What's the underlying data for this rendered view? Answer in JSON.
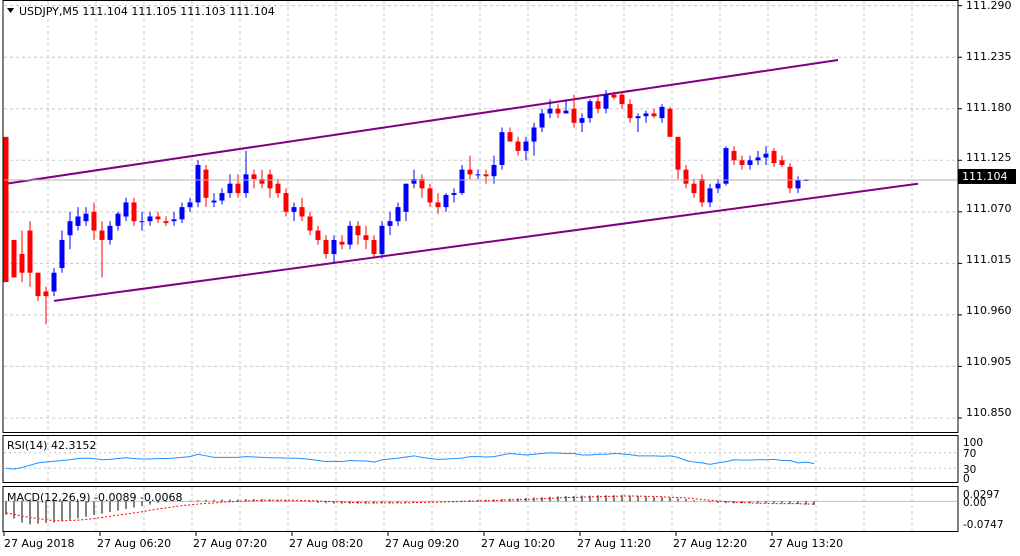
{
  "header": {
    "title": "USDJPY,M5  111.104 111.105 111.103 111.104"
  },
  "price_panel": {
    "price_label": "111.104",
    "y_ticks": [
      "111.290",
      "111.235",
      "111.180",
      "111.125",
      "111.070",
      "111.015",
      "110.960",
      "110.905",
      "110.850"
    ]
  },
  "rsi_panel": {
    "label": "RSI(14) 42.3152",
    "y_ticks": [
      "100",
      "70",
      "30",
      "0"
    ]
  },
  "macd_panel": {
    "label": "MACD(12,26,9) -0.0089 -0.0068",
    "y_ticks": [
      "0.0297",
      "0.00",
      "-0.0747"
    ]
  },
  "x_axis": {
    "ticks": [
      "27 Aug 2018",
      "27 Aug 06:20",
      "27 Aug 07:20",
      "27 Aug 08:20",
      "27 Aug 09:20",
      "27 Aug 10:20",
      "27 Aug 11:20",
      "27 Aug 12:20",
      "27 Aug 13:20"
    ]
  },
  "colors": {
    "bull": "#0000ff",
    "bear": "#ff0000",
    "channel": "#800080",
    "rsi": "#1e90ff",
    "macd_hist": "#000000",
    "macd_signal": "#ff0000",
    "grid": "#c8c8c8"
  },
  "chart_data": {
    "type": "candlestick",
    "symbol": "USDJPY",
    "timeframe": "M5",
    "ylim": [
      110.835,
      111.295
    ],
    "candles": [
      {
        "o": 111.15,
        "h": 111.15,
        "l": 110.995,
        "c": 110.995
      },
      {
        "o": 111.04,
        "h": 111.04,
        "l": 111.0,
        "c": 111.0
      },
      {
        "o": 111.025,
        "h": 111.05,
        "l": 110.995,
        "c": 111.005
      },
      {
        "o": 111.05,
        "h": 111.06,
        "l": 110.99,
        "c": 111.005
      },
      {
        "o": 111.005,
        "h": 111.005,
        "l": 110.975,
        "c": 110.98
      },
      {
        "o": 110.985,
        "h": 110.99,
        "l": 110.95,
        "c": 110.98
      },
      {
        "o": 110.985,
        "h": 111.01,
        "l": 110.98,
        "c": 111.005
      },
      {
        "o": 111.01,
        "h": 111.05,
        "l": 111.005,
        "c": 111.04
      },
      {
        "o": 111.045,
        "h": 111.07,
        "l": 111.03,
        "c": 111.06
      },
      {
        "o": 111.055,
        "h": 111.075,
        "l": 111.05,
        "c": 111.065
      },
      {
        "o": 111.06,
        "h": 111.075,
        "l": 111.055,
        "c": 111.068
      },
      {
        "o": 111.07,
        "h": 111.08,
        "l": 111.04,
        "c": 111.05
      },
      {
        "o": 111.05,
        "h": 111.06,
        "l": 111.0,
        "c": 111.04
      },
      {
        "o": 111.04,
        "h": 111.06,
        "l": 111.035,
        "c": 111.055
      },
      {
        "o": 111.055,
        "h": 111.07,
        "l": 111.05,
        "c": 111.068
      },
      {
        "o": 111.065,
        "h": 111.085,
        "l": 111.06,
        "c": 111.08
      },
      {
        "o": 111.08,
        "h": 111.085,
        "l": 111.055,
        "c": 111.06
      },
      {
        "o": 111.06,
        "h": 111.07,
        "l": 111.05,
        "c": 111.06
      },
      {
        "o": 111.06,
        "h": 111.07,
        "l": 111.055,
        "c": 111.065
      },
      {
        "o": 111.065,
        "h": 111.07,
        "l": 111.058,
        "c": 111.062
      },
      {
        "o": 111.06,
        "h": 111.065,
        "l": 111.055,
        "c": 111.058
      },
      {
        "o": 111.06,
        "h": 111.07,
        "l": 111.055,
        "c": 111.062
      },
      {
        "o": 111.062,
        "h": 111.08,
        "l": 111.058,
        "c": 111.075
      },
      {
        "o": 111.075,
        "h": 111.085,
        "l": 111.07,
        "c": 111.08
      },
      {
        "o": 111.08,
        "h": 111.125,
        "l": 111.075,
        "c": 111.12
      },
      {
        "o": 111.115,
        "h": 111.12,
        "l": 111.075,
        "c": 111.085
      },
      {
        "o": 111.08,
        "h": 111.09,
        "l": 111.075,
        "c": 111.082
      },
      {
        "o": 111.082,
        "h": 111.095,
        "l": 111.078,
        "c": 111.09
      },
      {
        "o": 111.09,
        "h": 111.11,
        "l": 111.085,
        "c": 111.1
      },
      {
        "o": 111.1,
        "h": 111.11,
        "l": 111.085,
        "c": 111.09
      },
      {
        "o": 111.09,
        "h": 111.135,
        "l": 111.085,
        "c": 111.11
      },
      {
        "o": 111.11,
        "h": 111.115,
        "l": 111.095,
        "c": 111.105
      },
      {
        "o": 111.105,
        "h": 111.115,
        "l": 111.095,
        "c": 111.1
      },
      {
        "o": 111.11,
        "h": 111.115,
        "l": 111.085,
        "c": 111.095
      },
      {
        "o": 111.1,
        "h": 111.105,
        "l": 111.085,
        "c": 111.09
      },
      {
        "o": 111.09,
        "h": 111.095,
        "l": 111.065,
        "c": 111.07
      },
      {
        "o": 111.07,
        "h": 111.08,
        "l": 111.06,
        "c": 111.075
      },
      {
        "o": 111.075,
        "h": 111.085,
        "l": 111.06,
        "c": 111.065
      },
      {
        "o": 111.065,
        "h": 111.07,
        "l": 111.045,
        "c": 111.05
      },
      {
        "o": 111.05,
        "h": 111.055,
        "l": 111.035,
        "c": 111.04
      },
      {
        "o": 111.04,
        "h": 111.045,
        "l": 111.02,
        "c": 111.025
      },
      {
        "o": 111.025,
        "h": 111.045,
        "l": 111.015,
        "c": 111.04
      },
      {
        "o": 111.038,
        "h": 111.045,
        "l": 111.03,
        "c": 111.035
      },
      {
        "o": 111.035,
        "h": 111.06,
        "l": 111.03,
        "c": 111.055
      },
      {
        "o": 111.055,
        "h": 111.06,
        "l": 111.035,
        "c": 111.045
      },
      {
        "o": 111.045,
        "h": 111.055,
        "l": 111.03,
        "c": 111.04
      },
      {
        "o": 111.04,
        "h": 111.045,
        "l": 111.022,
        "c": 111.025
      },
      {
        "o": 111.025,
        "h": 111.06,
        "l": 111.02,
        "c": 111.055
      },
      {
        "o": 111.055,
        "h": 111.07,
        "l": 111.045,
        "c": 111.06
      },
      {
        "o": 111.06,
        "h": 111.08,
        "l": 111.055,
        "c": 111.075
      },
      {
        "o": 111.07,
        "h": 111.1,
        "l": 111.06,
        "c": 111.1
      },
      {
        "o": 111.1,
        "h": 111.115,
        "l": 111.095,
        "c": 111.105
      },
      {
        "o": 111.105,
        "h": 111.11,
        "l": 111.085,
        "c": 111.095
      },
      {
        "o": 111.095,
        "h": 111.1,
        "l": 111.075,
        "c": 111.08
      },
      {
        "o": 111.08,
        "h": 111.09,
        "l": 111.068,
        "c": 111.075
      },
      {
        "o": 111.075,
        "h": 111.09,
        "l": 111.07,
        "c": 111.088
      },
      {
        "o": 111.088,
        "h": 111.095,
        "l": 111.08,
        "c": 111.09
      },
      {
        "o": 111.09,
        "h": 111.12,
        "l": 111.088,
        "c": 111.115
      },
      {
        "o": 111.115,
        "h": 111.13,
        "l": 111.105,
        "c": 111.11
      },
      {
        "o": 111.11,
        "h": 111.115,
        "l": 111.105,
        "c": 111.11
      },
      {
        "o": 111.11,
        "h": 111.115,
        "l": 111.1,
        "c": 111.108
      },
      {
        "o": 111.108,
        "h": 111.13,
        "l": 111.1,
        "c": 111.12
      },
      {
        "o": 111.12,
        "h": 111.16,
        "l": 111.115,
        "c": 111.155
      },
      {
        "o": 111.155,
        "h": 111.16,
        "l": 111.145,
        "c": 111.145
      },
      {
        "o": 111.145,
        "h": 111.15,
        "l": 111.13,
        "c": 111.135
      },
      {
        "o": 111.135,
        "h": 111.15,
        "l": 111.125,
        "c": 111.145
      },
      {
        "o": 111.145,
        "h": 111.165,
        "l": 111.13,
        "c": 111.16
      },
      {
        "o": 111.16,
        "h": 111.18,
        "l": 111.155,
        "c": 111.175
      },
      {
        "o": 111.175,
        "h": 111.19,
        "l": 111.17,
        "c": 111.18
      },
      {
        "o": 111.18,
        "h": 111.185,
        "l": 111.17,
        "c": 111.175
      },
      {
        "o": 111.175,
        "h": 111.19,
        "l": 111.175,
        "c": 111.178
      },
      {
        "o": 111.18,
        "h": 111.195,
        "l": 111.16,
        "c": 111.165
      },
      {
        "o": 111.165,
        "h": 111.175,
        "l": 111.155,
        "c": 111.17
      },
      {
        "o": 111.17,
        "h": 111.19,
        "l": 111.165,
        "c": 111.188
      },
      {
        "o": 111.188,
        "h": 111.195,
        "l": 111.175,
        "c": 111.18
      },
      {
        "o": 111.18,
        "h": 111.2,
        "l": 111.175,
        "c": 111.195
      },
      {
        "o": 111.195,
        "h": 111.198,
        "l": 111.19,
        "c": 111.192
      },
      {
        "o": 111.195,
        "h": 111.198,
        "l": 111.18,
        "c": 111.185
      },
      {
        "o": 111.185,
        "h": 111.19,
        "l": 111.165,
        "c": 111.17
      },
      {
        "o": 111.17,
        "h": 111.175,
        "l": 111.155,
        "c": 111.172
      },
      {
        "o": 111.172,
        "h": 111.178,
        "l": 111.165,
        "c": 111.175
      },
      {
        "o": 111.175,
        "h": 111.18,
        "l": 111.17,
        "c": 111.172
      },
      {
        "o": 111.17,
        "h": 111.185,
        "l": 111.165,
        "c": 111.182
      },
      {
        "o": 111.18,
        "h": 111.182,
        "l": 111.15,
        "c": 111.15
      },
      {
        "o": 111.15,
        "h": 111.15,
        "l": 111.105,
        "c": 111.115
      },
      {
        "o": 111.115,
        "h": 111.12,
        "l": 111.095,
        "c": 111.1
      },
      {
        "o": 111.1,
        "h": 111.105,
        "l": 111.085,
        "c": 111.09
      },
      {
        "o": 111.105,
        "h": 111.11,
        "l": 111.075,
        "c": 111.08
      },
      {
        "o": 111.08,
        "h": 111.1,
        "l": 111.075,
        "c": 111.095
      },
      {
        "o": 111.095,
        "h": 111.105,
        "l": 111.09,
        "c": 111.1
      },
      {
        "o": 111.1,
        "h": 111.14,
        "l": 111.098,
        "c": 111.138
      },
      {
        "o": 111.135,
        "h": 111.14,
        "l": 111.12,
        "c": 111.125
      },
      {
        "o": 111.125,
        "h": 111.13,
        "l": 111.115,
        "c": 111.12
      },
      {
        "o": 111.12,
        "h": 111.13,
        "l": 111.115,
        "c": 111.125
      },
      {
        "o": 111.125,
        "h": 111.135,
        "l": 111.12,
        "c": 111.128
      },
      {
        "o": 111.128,
        "h": 111.14,
        "l": 111.12,
        "c": 111.132
      },
      {
        "o": 111.135,
        "h": 111.138,
        "l": 111.118,
        "c": 111.122
      },
      {
        "o": 111.125,
        "h": 111.13,
        "l": 111.118,
        "c": 111.12
      },
      {
        "o": 111.118,
        "h": 111.122,
        "l": 111.09,
        "c": 111.095
      },
      {
        "o": 111.095,
        "h": 111.108,
        "l": 111.09,
        "c": 111.104
      },
      {
        "o": 111.104,
        "h": 111.105,
        "l": 111.103,
        "c": 111.104
      }
    ],
    "channel": {
      "upper": [
        {
          "i": 0,
          "y": 111.1
        },
        {
          "i": 104,
          "y": 111.232
        }
      ],
      "lower": [
        {
          "i": 6,
          "y": 110.975
        },
        {
          "i": 114,
          "y": 111.1
        }
      ]
    },
    "rsi": {
      "period": 14,
      "last": 42.3152,
      "ylim": [
        0,
        100
      ],
      "values": [
        30,
        28,
        32,
        38,
        44,
        46,
        48,
        50,
        52,
        55,
        56,
        55,
        52,
        53,
        55,
        57,
        55,
        54,
        54,
        55,
        55,
        56,
        58,
        60,
        66,
        62,
        58,
        58,
        58,
        58,
        60,
        59,
        58,
        57,
        57,
        56,
        56,
        55,
        53,
        50,
        47,
        48,
        47,
        50,
        49,
        49,
        46,
        52,
        54,
        56,
        59,
        62,
        58,
        55,
        53,
        54,
        55,
        56,
        60,
        60,
        59,
        60,
        64,
        68,
        66,
        64,
        66,
        68,
        70,
        69,
        68,
        68,
        64,
        64,
        66,
        66,
        68,
        67,
        65,
        62,
        62,
        62,
        61,
        62,
        58,
        50,
        46,
        44,
        40,
        44,
        47,
        52,
        51,
        51,
        52,
        52,
        53,
        50,
        50,
        44,
        46,
        42
      ]
    },
    "macd": {
      "params": "12,26,9",
      "main": -0.0089,
      "signal": -0.0068,
      "ylim": [
        -0.0747,
        0.0297
      ],
      "hist": [
        -0.035,
        -0.045,
        -0.055,
        -0.06,
        -0.058,
        -0.056,
        -0.055,
        -0.052,
        -0.048,
        -0.044,
        -0.04,
        -0.036,
        -0.032,
        -0.028,
        -0.024,
        -0.02,
        -0.016,
        -0.012,
        -0.008,
        -0.004,
        -0.002,
        0.0,
        0.001,
        0.002,
        0.003,
        0.004,
        0.004,
        0.005,
        0.005,
        0.005,
        0.006,
        0.006,
        0.006,
        0.005,
        0.004,
        0.003,
        0.001,
        -0.001,
        -0.002,
        -0.004,
        -0.005,
        -0.006,
        -0.006,
        -0.006,
        -0.006,
        -0.006,
        -0.006,
        -0.005,
        -0.005,
        -0.004,
        -0.003,
        -0.002,
        -0.001,
        -0.001,
        0.0,
        0.0,
        0.001,
        0.002,
        0.003,
        0.004,
        0.004,
        0.005,
        0.006,
        0.007,
        0.008,
        0.009,
        0.01,
        0.011,
        0.012,
        0.013,
        0.014,
        0.014,
        0.015,
        0.015,
        0.016,
        0.016,
        0.016,
        0.016,
        0.015,
        0.014,
        0.013,
        0.012,
        0.011,
        0.01,
        0.008,
        0.006,
        0.003,
        0.0,
        -0.002,
        -0.004,
        -0.005,
        -0.005,
        -0.005,
        -0.005,
        -0.005,
        -0.005,
        -0.005,
        -0.005,
        -0.006,
        -0.007,
        -0.008,
        -0.009
      ],
      "signal_values": [
        -0.03,
        -0.034,
        -0.038,
        -0.042,
        -0.045,
        -0.048,
        -0.05,
        -0.051,
        -0.05,
        -0.049,
        -0.047,
        -0.045,
        -0.042,
        -0.039,
        -0.036,
        -0.033,
        -0.03,
        -0.027,
        -0.023,
        -0.02,
        -0.017,
        -0.014,
        -0.011,
        -0.009,
        -0.007,
        -0.005,
        -0.004,
        -0.002,
        -0.001,
        0.0,
        0.001,
        0.002,
        0.003,
        0.003,
        0.003,
        0.003,
        0.003,
        0.002,
        0.002,
        0.001,
        0.0,
        -0.001,
        -0.002,
        -0.003,
        -0.003,
        -0.004,
        -0.004,
        -0.004,
        -0.004,
        -0.004,
        -0.004,
        -0.003,
        -0.003,
        -0.002,
        -0.002,
        -0.001,
        -0.001,
        0.0,
        0.0,
        0.001,
        0.002,
        0.002,
        0.003,
        0.004,
        0.004,
        0.005,
        0.006,
        0.007,
        0.008,
        0.009,
        0.01,
        0.01,
        0.011,
        0.012,
        0.012,
        0.013,
        0.013,
        0.014,
        0.014,
        0.014,
        0.013,
        0.013,
        0.012,
        0.011,
        0.01,
        0.009,
        0.007,
        0.005,
        0.003,
        0.001,
        -0.001,
        -0.002,
        -0.003,
        -0.004,
        -0.005,
        -0.005,
        -0.006,
        -0.006,
        -0.006,
        -0.006,
        -0.007,
        -0.007
      ]
    }
  }
}
